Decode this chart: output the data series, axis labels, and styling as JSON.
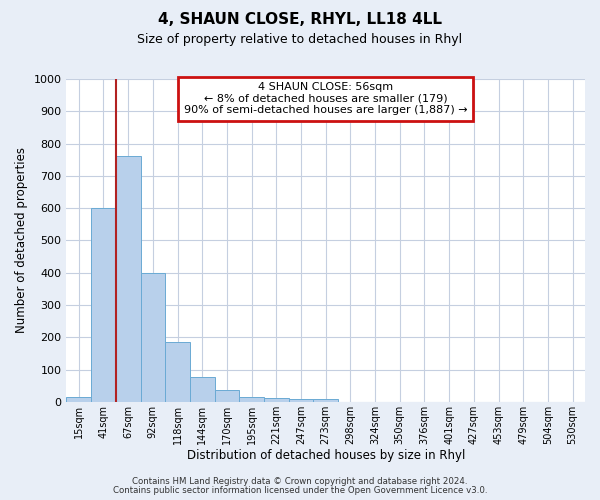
{
  "title": "4, SHAUN CLOSE, RHYL, LL18 4LL",
  "subtitle": "Size of property relative to detached houses in Rhyl",
  "xlabel": "Distribution of detached houses by size in Rhyl",
  "ylabel": "Number of detached properties",
  "bar_labels": [
    "15sqm",
    "41sqm",
    "67sqm",
    "92sqm",
    "118sqm",
    "144sqm",
    "170sqm",
    "195sqm",
    "221sqm",
    "247sqm",
    "273sqm",
    "298sqm",
    "324sqm",
    "350sqm",
    "376sqm",
    "401sqm",
    "427sqm",
    "453sqm",
    "479sqm",
    "504sqm",
    "530sqm"
  ],
  "bar_values": [
    15,
    600,
    760,
    400,
    185,
    78,
    38,
    15,
    13,
    8,
    10,
    0,
    0,
    0,
    0,
    0,
    0,
    0,
    0,
    0,
    0
  ],
  "bar_color": "#b8d0eb",
  "bar_edge_color": "#6aaad4",
  "vline_color": "#b22222",
  "ylim": [
    0,
    1000
  ],
  "yticks": [
    0,
    100,
    200,
    300,
    400,
    500,
    600,
    700,
    800,
    900,
    1000
  ],
  "annotation_title": "4 SHAUN CLOSE: 56sqm",
  "annotation_line1": "← 8% of detached houses are smaller (179)",
  "annotation_line2": "90% of semi-detached houses are larger (1,887) →",
  "annotation_box_color": "#cc1111",
  "footer_line1": "Contains HM Land Registry data © Crown copyright and database right 2024.",
  "footer_line2": "Contains public sector information licensed under the Open Government Licence v3.0.",
  "bg_color": "#e8eef7",
  "plot_bg_color": "#ffffff",
  "grid_color": "#c5cfe0"
}
